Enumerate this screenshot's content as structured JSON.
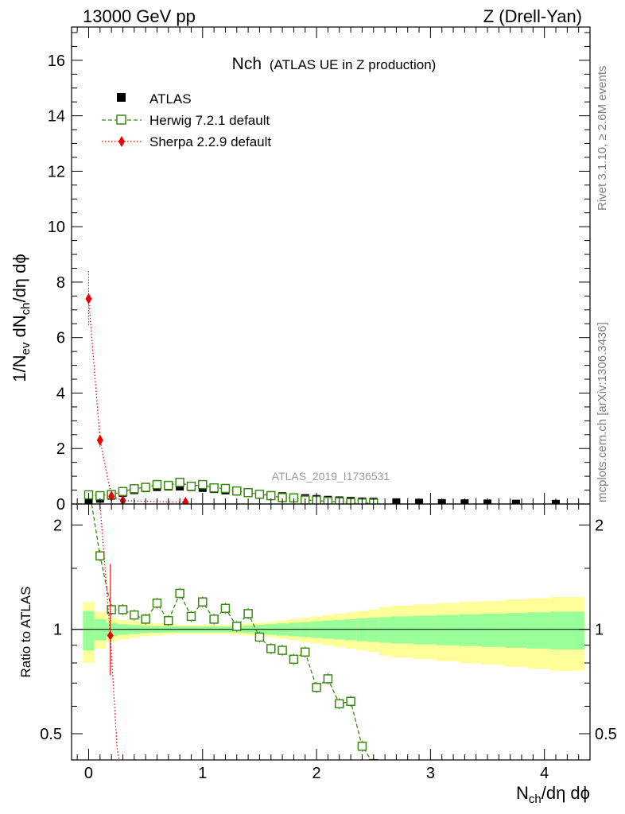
{
  "header": {
    "left": "13000 GeV pp",
    "right": "Z (Drell-Yan)"
  },
  "title": {
    "main": "Nch",
    "sub": "(ATLAS UE in Z production)"
  },
  "side_labels": {
    "rivet": "Rivet 3.1.10, ≥ 2.6M events",
    "mcplots": "mcplots.cern.ch [arXiv:1306.3436]"
  },
  "watermark": "ATLAS_2019_I1736531",
  "axes": {
    "xlabel_main": "N",
    "xlabel_sub": "ch",
    "xlabel_tail": "/dη dϕ",
    "ylabel_top": "1/N_ev dN_ch/dη dϕ",
    "ylabel_bottom": "Ratio to ATLAS"
  },
  "colors": {
    "data": "#000000",
    "herwig": "#3a8a12",
    "sherpa": "#ee0000",
    "band_inner": "#99ff99",
    "band_outer": "#ffff99"
  },
  "legend": {
    "atlas": "ATLAS",
    "herwig": "Herwig 7.2.1 default",
    "sherpa": "Sherpa 2.2.9 default"
  },
  "chart_data": {
    "type": "scatter",
    "xlim": [
      -0.15,
      4.4
    ],
    "x_ticks": [
      "0",
      "1",
      "2",
      "3",
      "4"
    ],
    "x_tick_values": [
      0,
      1,
      2,
      3,
      4
    ],
    "top": {
      "ylim": [
        0,
        17.2
      ],
      "y_ticks": [
        "0",
        "2",
        "4",
        "6",
        "8",
        "10",
        "12",
        "14",
        "16"
      ],
      "y_tick_values": [
        0,
        2,
        4,
        6,
        8,
        10,
        12,
        14,
        16
      ]
    },
    "ratio": {
      "ylim": [
        0.42,
        2.3
      ],
      "y_ticks": [
        "0.5",
        "1",
        "2"
      ],
      "y_tick_values": [
        0.5,
        1,
        2
      ]
    },
    "atlas": {
      "name": "ATLAS",
      "x": [
        0.0,
        0.1,
        0.2,
        0.3,
        0.4,
        0.5,
        0.6,
        0.7,
        0.8,
        0.9,
        1.0,
        1.1,
        1.2,
        1.3,
        1.4,
        1.5,
        1.6,
        1.7,
        1.8,
        1.9,
        2.0,
        2.1,
        2.2,
        2.3,
        2.4,
        2.5,
        2.7,
        2.9,
        3.1,
        3.3,
        3.5,
        3.75,
        4.1
      ],
      "y": [
        0.08,
        0.19,
        0.3,
        0.4,
        0.5,
        0.57,
        0.61,
        0.63,
        0.63,
        0.61,
        0.58,
        0.54,
        0.49,
        0.45,
        0.4,
        0.36,
        0.32,
        0.28,
        0.24,
        0.21,
        0.18,
        0.15,
        0.13,
        0.11,
        0.09,
        0.08,
        0.06,
        0.045,
        0.033,
        0.024,
        0.017,
        0.011,
        0.006
      ]
    },
    "band": {
      "edges": [
        -0.05,
        0.05,
        0.15,
        0.25,
        0.35,
        0.45,
        0.55,
        0.65,
        0.75,
        0.85,
        0.95,
        1.05,
        1.15,
        1.25,
        1.35,
        1.45,
        1.55,
        1.65,
        1.75,
        1.85,
        1.95,
        2.05,
        2.15,
        2.25,
        2.35,
        2.45,
        2.55,
        2.65,
        2.85,
        3.05,
        3.25,
        3.45,
        3.65,
        3.85,
        4.05,
        4.35
      ],
      "inner": [
        0.13,
        0.07,
        0.045,
        0.035,
        0.03,
        0.025,
        0.022,
        0.02,
        0.02,
        0.02,
        0.02,
        0.02,
        0.02,
        0.02,
        0.025,
        0.03,
        0.035,
        0.04,
        0.045,
        0.05,
        0.055,
        0.06,
        0.065,
        0.07,
        0.075,
        0.08,
        0.085,
        0.09,
        0.095,
        0.1,
        0.105,
        0.11,
        0.115,
        0.12,
        0.125
      ],
      "outer": [
        0.2,
        0.12,
        0.08,
        0.065,
        0.055,
        0.045,
        0.04,
        0.035,
        0.03,
        0.03,
        0.03,
        0.03,
        0.03,
        0.035,
        0.04,
        0.045,
        0.05,
        0.06,
        0.07,
        0.08,
        0.09,
        0.1,
        0.11,
        0.12,
        0.13,
        0.14,
        0.16,
        0.17,
        0.18,
        0.19,
        0.2,
        0.21,
        0.22,
        0.23,
        0.24
      ]
    },
    "herwig": {
      "name": "Herwig 7.2.1 default",
      "x": [
        0.0,
        0.1,
        0.2,
        0.3,
        0.4,
        0.5,
        0.6,
        0.7,
        0.8,
        0.9,
        1.0,
        1.1,
        1.2,
        1.3,
        1.4,
        1.5,
        1.6,
        1.7,
        1.8,
        1.9,
        2.0,
        2.1,
        2.2,
        2.3,
        2.4,
        2.5
      ],
      "y": [
        0.33,
        0.3,
        0.34,
        0.45,
        0.55,
        0.6,
        0.7,
        0.67,
        0.78,
        0.64,
        0.7,
        0.58,
        0.56,
        0.47,
        0.41,
        0.35,
        0.3,
        0.23,
        0.22,
        0.14,
        0.13,
        0.09,
        0.08,
        0.05,
        0.035,
        0.03
      ],
      "ratio": [
        2.6,
        1.63,
        1.14,
        1.14,
        1.1,
        1.07,
        1.19,
        1.06,
        1.27,
        1.09,
        1.2,
        1.07,
        1.15,
        1.02,
        1.11,
        0.95,
        0.88,
        0.87,
        0.82,
        0.86,
        0.68,
        0.72,
        0.61,
        0.62,
        0.46,
        0.41,
        0.42
      ]
    },
    "herwig_ratio_x": [
      0.0,
      0.1,
      0.2,
      0.3,
      0.4,
      0.5,
      0.6,
      0.7,
      0.8,
      0.9,
      1.0,
      1.1,
      1.2,
      1.3,
      1.4,
      1.5,
      1.6,
      1.7,
      1.8,
      1.9,
      2.0,
      2.1,
      2.2,
      2.3,
      2.4,
      2.5,
      2.45
    ],
    "sherpa": {
      "name": "Sherpa 2.2.9 default",
      "x": [
        0.0,
        0.1,
        0.2,
        0.3,
        0.85
      ],
      "y": [
        7.4,
        2.3,
        0.28,
        0.12,
        0.06
      ],
      "y_err": [
        1.0,
        0.3,
        0.05,
        0.02,
        0.01
      ],
      "ratio_x": [
        0.19,
        0.25,
        0.27
      ],
      "ratio": [
        0.96,
        0.45,
        0.42
      ]
    }
  }
}
